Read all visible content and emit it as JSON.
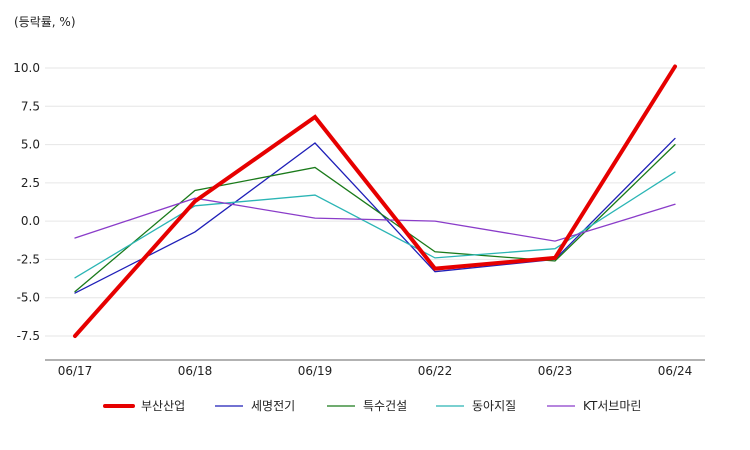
{
  "chart_data": {
    "type": "line",
    "unit_label": "(등락률, %)",
    "categories": [
      "06/17",
      "06/18",
      "06/19",
      "06/22",
      "06/23",
      "06/24"
    ],
    "yticks": [
      "10.0",
      "7.5",
      "5.0",
      "2.5",
      "0.0",
      "-2.5",
      "-5.0",
      "-7.5"
    ],
    "ylim": [
      -9,
      11
    ],
    "grid": true,
    "legend_position": "bottom",
    "series": [
      {
        "name": "부산산업",
        "color": "#e60000",
        "emphasis": true,
        "values": [
          -7.5,
          1.3,
          6.8,
          -3.1,
          -2.4,
          10.1
        ]
      },
      {
        "name": "세명전기",
        "color": "#1f1fb8",
        "values": [
          -4.7,
          -0.7,
          5.1,
          -3.3,
          -2.5,
          5.4
        ]
      },
      {
        "name": "특수건설",
        "color": "#1a7a1a",
        "values": [
          -4.6,
          2.0,
          3.5,
          -2.0,
          -2.6,
          5.0
        ]
      },
      {
        "name": "동아지질",
        "color": "#2bb5b5",
        "values": [
          -3.7,
          1.0,
          1.7,
          -2.4,
          -1.8,
          3.2
        ]
      },
      {
        "name": "KT서브마린",
        "color": "#8a3cc9",
        "values": [
          -1.1,
          1.5,
          0.2,
          0.0,
          -1.3,
          1.1
        ]
      }
    ]
  }
}
